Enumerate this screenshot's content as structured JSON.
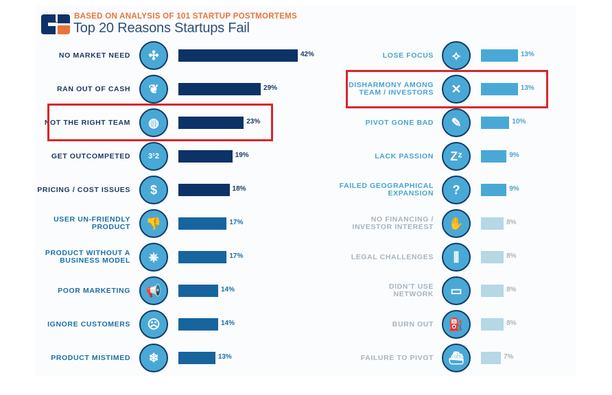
{
  "header": {
    "subtitle": "BASED ON ANALYSIS OF 101 STARTUP POSTMORTEMS",
    "title": "Top 20 Reasons Startups Fail",
    "logo_icon": "cb-insights-logo-icon"
  },
  "colors": {
    "tier1": "#0d3268",
    "tier2": "#17649e",
    "tier3": "#4aa8d6",
    "tier4": "#b5d7e6",
    "label_tier1": "#1c3a63",
    "label_tier2": "#1c6ea8",
    "label_tier3": "#4aa3cf",
    "label_tier4": "#a7b4be",
    "highlight": "#d9262c",
    "subtitle": "#e8743b"
  },
  "chart_data": {
    "type": "bar",
    "orientation": "horizontal",
    "title": "Top 20 Reasons Startups Fail",
    "subtitle": "BASED ON ANALYSIS OF 101 STARTUP POSTMORTEMS",
    "unit": "%",
    "xlim": [
      0,
      45
    ],
    "grid": false,
    "legend": "none",
    "highlighted": [
      "NOT THE RIGHT TEAM",
      "DISHARMONY AMONG TEAM / INVESTORS"
    ],
    "categories": [
      "NO MARKET NEED",
      "RAN OUT OF CASH",
      "NOT THE RIGHT TEAM",
      "GET OUTCOMPETED",
      "PRICING / COST ISSUES",
      "USER UN-FRIENDLY PRODUCT",
      "PRODUCT WITHOUT A BUSINESS MODEL",
      "POOR MARKETING",
      "IGNORE CUSTOMERS",
      "PRODUCT MISTIMED",
      "LOSE FOCUS",
      "DISHARMONY AMONG TEAM / INVESTORS",
      "PIVOT GONE BAD",
      "LACK PASSION",
      "FAILED GEOGRAPHICAL EXPANSION",
      "NO FINANCING / INVESTOR INTEREST",
      "LEGAL CHALLENGES",
      "DIDN'T USE NETWORK",
      "BURN OUT",
      "FAILURE TO PIVOT"
    ],
    "values": [
      42,
      29,
      23,
      19,
      18,
      17,
      17,
      14,
      14,
      13,
      13,
      13,
      10,
      9,
      9,
      8,
      8,
      8,
      8,
      7
    ],
    "items": [
      {
        "label": "NO MARKET NEED",
        "value": 42,
        "value_label": "42%",
        "icon": "puzzle-icon",
        "glyph": "✣",
        "tier": 1,
        "column": "left"
      },
      {
        "label": "RAN OUT OF CASH",
        "value": 29,
        "value_label": "29%",
        "icon": "empty-pocket-icon",
        "glyph": "❦",
        "tier": 1,
        "column": "left"
      },
      {
        "label": "NOT THE RIGHT TEAM",
        "value": 23,
        "value_label": "23%",
        "icon": "team-player-icon",
        "glyph": "◍",
        "tier": 1,
        "column": "left",
        "highlighted": true
      },
      {
        "label": "GET OUTCOMPETED",
        "value": 19,
        "value_label": "19%",
        "icon": "podium-icon",
        "glyph": "3¹2",
        "tier": 1,
        "column": "left"
      },
      {
        "label": "PRICING / COST ISSUES",
        "value": 18,
        "value_label": "18%",
        "icon": "coins-icon",
        "glyph": "$",
        "tier": 1,
        "column": "left"
      },
      {
        "label": "USER UN-FRIENDLY\nPRODUCT",
        "value": 17,
        "value_label": "17%",
        "icon": "thumbs-down-icon",
        "glyph": "👎",
        "tier": 2,
        "column": "left"
      },
      {
        "label": "PRODUCT WITHOUT A\nBUSINESS MODEL",
        "value": 17,
        "value_label": "17%",
        "icon": "wheel-cart-icon",
        "glyph": "⎈",
        "tier": 2,
        "column": "left"
      },
      {
        "label": "POOR MARKETING",
        "value": 14,
        "value_label": "14%",
        "icon": "megaphone-icon",
        "glyph": "📢",
        "tier": 2,
        "column": "left"
      },
      {
        "label": "IGNORE CUSTOMERS",
        "value": 14,
        "value_label": "14%",
        "icon": "ignoring-face-icon",
        "glyph": "☹",
        "tier": 2,
        "column": "left"
      },
      {
        "label": "PRODUCT MISTIMED",
        "value": 13,
        "value_label": "13%",
        "icon": "snowflake-icon",
        "glyph": "❄",
        "tier": 2,
        "column": "left"
      },
      {
        "label": "LOSE FOCUS",
        "value": 13,
        "value_label": "13%",
        "icon": "scatter-arrows-icon",
        "glyph": "⟡",
        "tier": 3,
        "column": "right"
      },
      {
        "label": "DISHARMONY AMONG\nTEAM / INVESTORS",
        "value": 13,
        "value_label": "13%",
        "icon": "crossed-oars-icon",
        "glyph": "✕",
        "tier": 3,
        "column": "right",
        "highlighted": true
      },
      {
        "label": "PIVOT GONE BAD",
        "value": 10,
        "value_label": "10%",
        "icon": "broken-pencil-icon",
        "glyph": "✎",
        "tier": 3,
        "column": "right"
      },
      {
        "label": "LACK PASSION",
        "value": 9,
        "value_label": "9%",
        "icon": "sleep-zz-icon",
        "glyph": "Zᶻ",
        "tier": 3,
        "column": "right"
      },
      {
        "label": "FAILED GEOGRAPHICAL\nEXPANSION",
        "value": 9,
        "value_label": "9%",
        "icon": "map-pin-question-icon",
        "glyph": "?",
        "tier": 3,
        "column": "right"
      },
      {
        "label": "NO FINANCING /\nINVESTOR INTEREST",
        "value": 8,
        "value_label": "8%",
        "icon": "empty-hand-icon",
        "glyph": "✋",
        "tier": 4,
        "column": "right"
      },
      {
        "label": "LEGAL CHALLENGES",
        "value": 8,
        "value_label": "8%",
        "icon": "jail-bars-icon",
        "glyph": "⫼",
        "tier": 4,
        "column": "right"
      },
      {
        "label": "DIDN'T USE\nNETWORK",
        "value": 8,
        "value_label": "8%",
        "icon": "laptop-network-icon",
        "glyph": "▭",
        "tier": 4,
        "column": "right"
      },
      {
        "label": "BURN OUT",
        "value": 8,
        "value_label": "8%",
        "icon": "fuel-pump-icon",
        "glyph": "⛽",
        "tier": 4,
        "column": "right"
      },
      {
        "label": "FAILURE TO PIVOT",
        "value": 7,
        "value_label": "7%",
        "icon": "sinking-ship-icon",
        "glyph": "⛴",
        "tier": 4,
        "column": "right"
      }
    ]
  }
}
